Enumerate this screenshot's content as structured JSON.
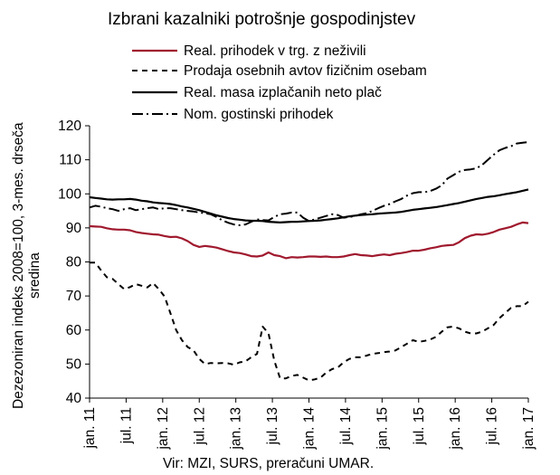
{
  "chart_data": {
    "type": "line",
    "title": "Izbrani kazalniki potrošnje gospodinjstev",
    "ylabel_line1": "Dezezoniran indeks 2008=100, 3-mes. drseča",
    "ylabel_line2": "sredina",
    "source": "Vir: MZI, SURS, preračuni UMAR.",
    "ylim": [
      40,
      120
    ],
    "yticks": [
      40,
      50,
      60,
      70,
      80,
      90,
      100,
      110,
      120
    ],
    "grid": false,
    "legend_position": "top-left",
    "x_start": "2011-01",
    "x_end": "2017-01",
    "xticks": [
      "jan. 11",
      "jul. 11",
      "jan. 12",
      "jul. 12",
      "jan. 13",
      "jul. 13",
      "jan. 14",
      "jul. 14",
      "jan. 15",
      "jul. 15",
      "jan. 16",
      "jul. 16",
      "jan. 17"
    ],
    "series": [
      {
        "name": "Real. prihodek v trg. z neživili",
        "color": "#a0192e",
        "style": "solid",
        "values": [
          90.5,
          90.4,
          90.3,
          89.9,
          89.6,
          89.5,
          89.5,
          89.3,
          88.8,
          88.5,
          88.3,
          88.1,
          88.0,
          87.6,
          87.3,
          87.4,
          86.9,
          86.1,
          85.0,
          84.4,
          84.7,
          84.5,
          84.2,
          83.7,
          83.2,
          82.8,
          82.6,
          82.2,
          81.7,
          81.6,
          81.9,
          82.8,
          82.0,
          81.7,
          81.1,
          81.4,
          81.3,
          81.4,
          81.6,
          81.6,
          81.5,
          81.6,
          81.4,
          81.4,
          81.6,
          82.0,
          82.3,
          82.0,
          81.9,
          81.7,
          82.0,
          82.2,
          82.0,
          82.4,
          82.6,
          82.9,
          83.3,
          83.3,
          83.6,
          84.0,
          84.3,
          84.7,
          84.9,
          85.0,
          85.8,
          87.0,
          87.7,
          88.1,
          88.0,
          88.3,
          88.8,
          89.5,
          89.9,
          90.3,
          91.0,
          91.6,
          91.4
        ]
      },
      {
        "name": "Prodaja osebnih avtov fizičnim osebam",
        "color": "#000000",
        "style": "dashed",
        "values": [
          79.8,
          79.8,
          77.5,
          75.5,
          75.0,
          73.5,
          72.0,
          72.6,
          73.5,
          73.0,
          72.5,
          73.8,
          72.0,
          69.8,
          65.0,
          60.0,
          57.0,
          55.0,
          54.0,
          51.5,
          50.0,
          50.3,
          50.2,
          50.3,
          50.2,
          49.8,
          50.5,
          50.8,
          52.0,
          53.0,
          61.0,
          59.0,
          51.0,
          45.8,
          45.8,
          46.5,
          46.8,
          46.0,
          45.2,
          45.5,
          46.0,
          47.5,
          48.5,
          49.0,
          50.5,
          51.5,
          52.0,
          52.0,
          52.5,
          53.0,
          53.2,
          53.5,
          53.7,
          54.0,
          55.0,
          56.0,
          57.0,
          56.5,
          56.8,
          57.2,
          58.0,
          59.5,
          60.8,
          61.0,
          60.5,
          59.5,
          59.0,
          59.0,
          59.5,
          60.5,
          61.5,
          63.5,
          65.0,
          66.5,
          67.0,
          67.0,
          68.3
        ]
      },
      {
        "name": "Real. masa izplačanih neto plač",
        "color": "#000000",
        "style": "solid",
        "values": [
          99.0,
          98.8,
          98.6,
          98.4,
          98.3,
          98.4,
          98.4,
          98.5,
          98.3,
          98.0,
          97.8,
          97.5,
          97.3,
          97.2,
          97.0,
          96.7,
          96.3,
          96.0,
          95.6,
          95.2,
          94.7,
          94.2,
          93.7,
          93.3,
          92.9,
          92.6,
          92.4,
          92.2,
          92.1,
          92.1,
          92.0,
          91.8,
          91.7,
          91.6,
          91.7,
          91.8,
          91.8,
          91.9,
          92.0,
          92.1,
          92.2,
          92.4,
          92.6,
          92.8,
          93.1,
          93.4,
          93.6,
          93.8,
          93.9,
          94.0,
          94.2,
          94.3,
          94.4,
          94.5,
          94.7,
          95.0,
          95.3,
          95.5,
          95.7,
          95.9,
          96.1,
          96.4,
          96.7,
          97.0,
          97.3,
          97.7,
          98.1,
          98.5,
          98.8,
          99.1,
          99.3,
          99.6,
          99.9,
          100.2,
          100.5,
          100.9,
          101.3
        ]
      },
      {
        "name": "Nom. gostinski prihodek",
        "color": "#000000",
        "style": "dashdot",
        "values": [
          96.0,
          96.5,
          96.2,
          95.8,
          95.5,
          95.0,
          95.5,
          95.8,
          95.2,
          95.5,
          95.8,
          96.0,
          95.5,
          95.8,
          95.8,
          95.5,
          95.2,
          95.0,
          94.8,
          94.5,
          94.3,
          94.0,
          93.2,
          92.2,
          91.5,
          91.0,
          90.8,
          91.0,
          91.8,
          92.5,
          92.3,
          92.2,
          93.2,
          94.0,
          94.2,
          94.5,
          94.5,
          93.0,
          92.0,
          92.5,
          93.0,
          93.5,
          94.0,
          93.8,
          93.0,
          93.2,
          93.5,
          94.0,
          94.3,
          95.0,
          95.8,
          96.5,
          97.0,
          97.8,
          98.5,
          99.5,
          100.2,
          100.5,
          100.5,
          100.8,
          101.5,
          102.5,
          104.5,
          105.5,
          106.5,
          107.0,
          107.2,
          107.5,
          108.5,
          110.0,
          111.5,
          112.8,
          113.5,
          114.0,
          114.8,
          115.0,
          115.2
        ]
      }
    ]
  }
}
